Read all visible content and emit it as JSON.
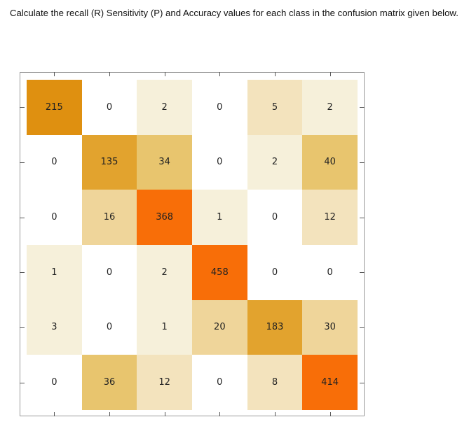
{
  "question_text": "Calculate the recall (R) Sensitivity (P) and Accuracy values for each class in the confusion matrix given below.",
  "chart_data": {
    "type": "heatmap",
    "rows": 6,
    "cols": 6,
    "values": [
      [
        215,
        0,
        2,
        0,
        5,
        2
      ],
      [
        0,
        135,
        34,
        0,
        2,
        40
      ],
      [
        0,
        16,
        368,
        1,
        0,
        12
      ],
      [
        1,
        0,
        2,
        458,
        0,
        0
      ],
      [
        3,
        0,
        1,
        20,
        183,
        30
      ],
      [
        0,
        36,
        12,
        0,
        8,
        414
      ]
    ],
    "colors": {
      "zero": "#ffffff",
      "scale": [
        "#f6f0da",
        "#f3e3bd",
        "#efd59a",
        "#e8c56e",
        "#e2a32e",
        "#df9010",
        "#f86e08"
      ]
    }
  }
}
